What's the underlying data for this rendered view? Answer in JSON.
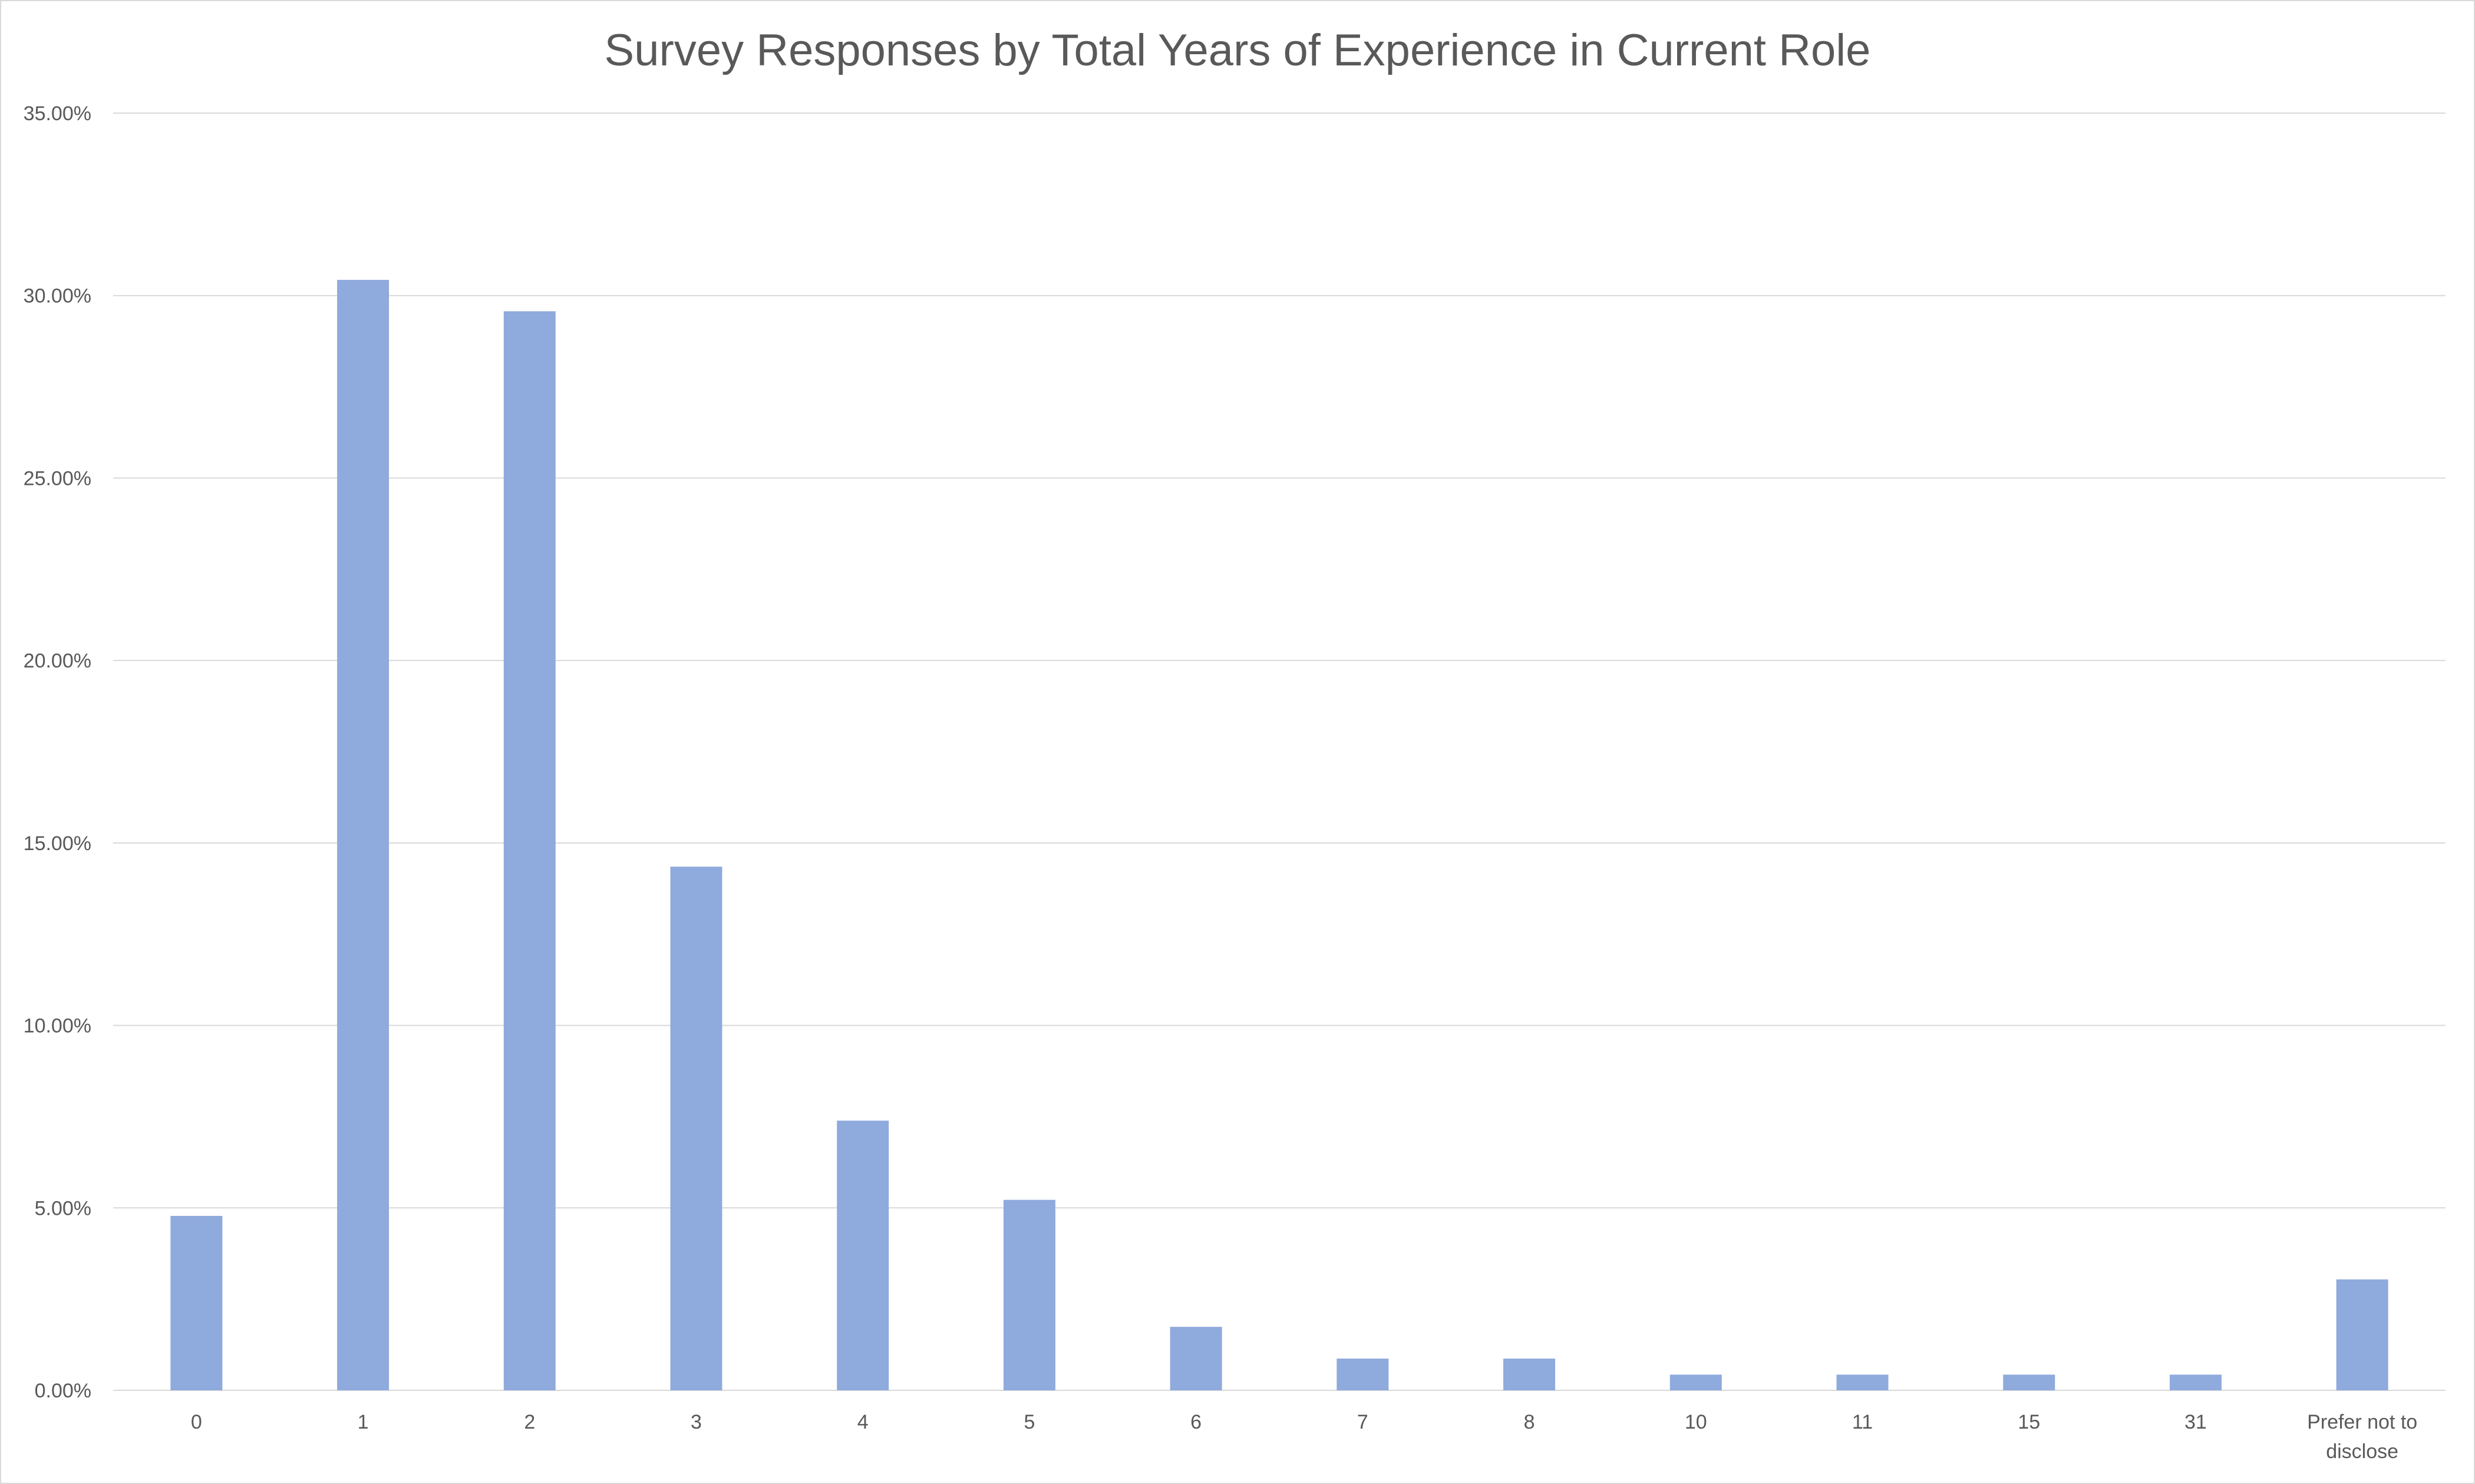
{
  "chart_data": {
    "type": "bar",
    "title": "Survey Responses by Total Years of Experience in Current Role",
    "xlabel": "",
    "ylabel": "",
    "categories": [
      "0",
      "1",
      "2",
      "3",
      "4",
      "5",
      "6",
      "7",
      "8",
      "10",
      "11",
      "15",
      "31",
      "Prefer not to disclose"
    ],
    "category_lines": [
      [
        "0"
      ],
      [
        "1"
      ],
      [
        "2"
      ],
      [
        "3"
      ],
      [
        "4"
      ],
      [
        "5"
      ],
      [
        "6"
      ],
      [
        "7"
      ],
      [
        "8"
      ],
      [
        "10"
      ],
      [
        "11"
      ],
      [
        "15"
      ],
      [
        "31"
      ],
      [
        "Prefer not to",
        "disclose"
      ]
    ],
    "values": [
      4.78,
      30.43,
      29.57,
      14.35,
      7.39,
      5.22,
      1.74,
      0.87,
      0.87,
      0.43,
      0.43,
      0.43,
      0.43,
      3.04
    ],
    "ylim": [
      0,
      35
    ],
    "yticks": [
      0,
      5,
      10,
      15,
      20,
      25,
      30,
      35
    ],
    "ytick_labels": [
      "0.00%",
      "5.00%",
      "10.00%",
      "15.00%",
      "20.00%",
      "25.00%",
      "30.00%",
      "35.00%"
    ],
    "grid": true,
    "legend": "none",
    "colors": {
      "bar": "#8faadc",
      "grid": "#d9d9d9",
      "text": "#595959"
    }
  }
}
